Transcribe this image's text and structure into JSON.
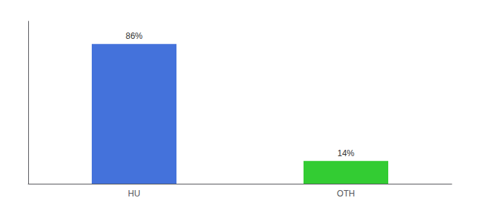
{
  "chart_data": {
    "type": "bar",
    "categories": [
      "HU",
      "OTH"
    ],
    "values": [
      86,
      14
    ],
    "value_labels": [
      "86%",
      "14%"
    ],
    "colors": [
      "#4472db",
      "#33cc33"
    ],
    "ylim": [
      0,
      100
    ],
    "yticks": [],
    "grid": false,
    "data_labels": true,
    "tick_labels": "x"
  }
}
